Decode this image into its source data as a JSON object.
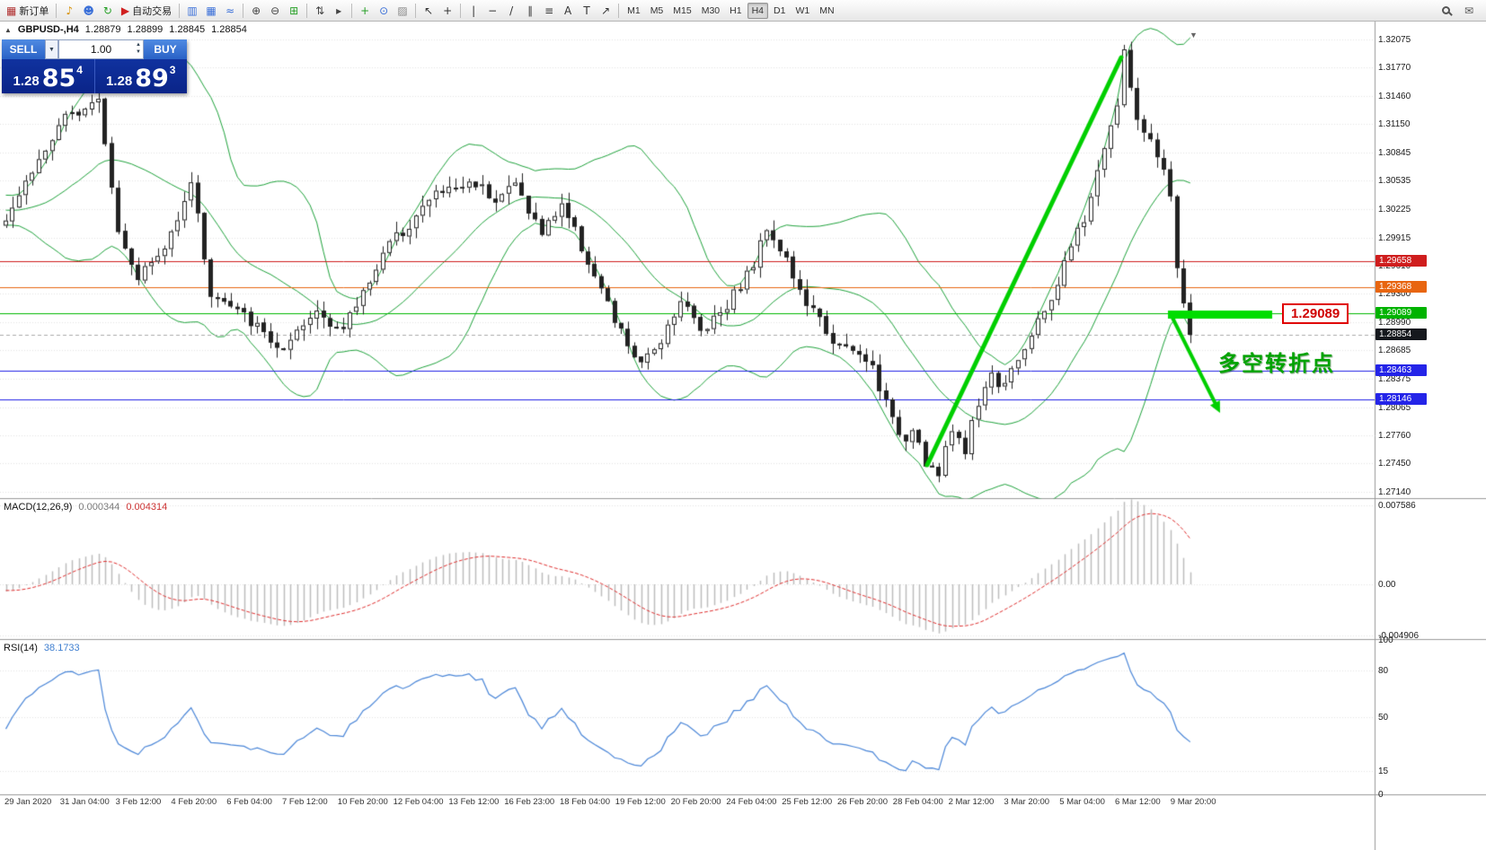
{
  "toolbar": {
    "items": [
      {
        "type": "button",
        "name": "new-order-button",
        "icon": "new-order-icon",
        "glyph": "▦",
        "glyph_color": "#b03030",
        "label": "新订单"
      },
      {
        "type": "sep"
      },
      {
        "type": "icon",
        "name": "megaphone-icon",
        "glyph": "♪",
        "glyph_color": "#d89000"
      },
      {
        "type": "icon",
        "name": "contacts-icon",
        "glyph": "☻",
        "glyph_color": "#3a6fd8"
      },
      {
        "type": "icon",
        "name": "community-icon",
        "glyph": "↻",
        "glyph_color": "#28a028"
      },
      {
        "type": "button",
        "name": "auto-trading-button",
        "icon": "auto-trading-icon",
        "glyph": "▶",
        "glyph_color": "#d02020",
        "label": "自动交易"
      },
      {
        "type": "sep"
      },
      {
        "type": "icon",
        "name": "bar-chart-icon",
        "glyph": "▥",
        "glyph_color": "#3a6fd8"
      },
      {
        "type": "icon",
        "name": "candle-chart-icon",
        "glyph": "▦",
        "glyph_color": "#3a6fd8"
      },
      {
        "type": "icon",
        "name": "line-chart-icon",
        "glyph": "≈",
        "glyph_color": "#3a6fd8"
      },
      {
        "type": "sep"
      },
      {
        "type": "icon",
        "name": "zoom-in-icon",
        "glyph": "⊕",
        "glyph_color": "#444"
      },
      {
        "type": "icon",
        "name": "zoom-out-icon",
        "glyph": "⊖",
        "glyph_color": "#444"
      },
      {
        "type": "icon",
        "name": "tile-windows-icon",
        "glyph": "⊞",
        "glyph_color": "#28a028"
      },
      {
        "type": "sep"
      },
      {
        "type": "icon",
        "name": "arrange-windows-icon",
        "glyph": "⇅",
        "glyph_color": "#444"
      },
      {
        "type": "icon",
        "name": "auto-scroll-icon",
        "glyph": "▸",
        "glyph_color": "#444"
      },
      {
        "type": "sep"
      },
      {
        "type": "icon",
        "name": "add-indicator-icon",
        "glyph": "+",
        "glyph_color": "#28a028"
      },
      {
        "type": "icon",
        "name": "periods-icon",
        "glyph": "⊙",
        "glyph_color": "#3a6fd8"
      },
      {
        "type": "icon",
        "name": "templates-icon",
        "glyph": "▨",
        "glyph_color": "#888"
      },
      {
        "type": "sep"
      },
      {
        "type": "icon",
        "name": "cursor-icon",
        "glyph": "↖",
        "glyph_color": "#333"
      },
      {
        "type": "icon",
        "name": "crosshair-icon",
        "glyph": "+",
        "glyph_color": "#333"
      },
      {
        "type": "sep"
      },
      {
        "type": "icon",
        "name": "vertical-line-icon",
        "glyph": "|",
        "glyph_color": "#333"
      },
      {
        "type": "icon",
        "name": "horizontal-line-icon",
        "glyph": "−",
        "glyph_color": "#333"
      },
      {
        "type": "icon",
        "name": "trendline-icon",
        "glyph": "/",
        "glyph_color": "#333"
      },
      {
        "type": "icon",
        "name": "channel-icon",
        "glyph": "∥",
        "glyph_color": "#333"
      },
      {
        "type": "icon",
        "name": "fibonacci-icon",
        "glyph": "≡",
        "glyph_color": "#333"
      },
      {
        "type": "icon",
        "name": "text-icon",
        "glyph": "A",
        "glyph_color": "#333"
      },
      {
        "type": "icon",
        "name": "label-icon",
        "glyph": "T",
        "glyph_color": "#333"
      },
      {
        "type": "icon",
        "name": "shapes-icon",
        "glyph": "↗",
        "glyph_color": "#333"
      },
      {
        "type": "sep"
      }
    ],
    "timeframes": [
      "M1",
      "M5",
      "M15",
      "M30",
      "H1",
      "H4",
      "D1",
      "W1",
      "MN"
    ],
    "active_timeframe": "H4",
    "items_right": [
      {
        "type": "search",
        "name": "search-icon"
      },
      {
        "type": "icon",
        "name": "message-icon",
        "glyph": "✉",
        "glyph_color": "#555"
      }
    ]
  },
  "quote_bar": {
    "symbol": "GBPUSD-,H4",
    "open": "1.28879",
    "high": "1.28899",
    "low": "1.28845",
    "close": "1.28854"
  },
  "trade_widget": {
    "sell_label": "SELL",
    "buy_label": "BUY",
    "volume": "1.00",
    "sell_big": "1.28",
    "sell_pips": "85",
    "sell_sup": "4",
    "buy_big": "1.28",
    "buy_pips": "89",
    "buy_sup": "3"
  },
  "indicator_labels": {
    "macd_name": "MACD(12,26,9)",
    "macd_main": "0.000344",
    "macd_signal": "0.004314",
    "rsi_name": "RSI(14)",
    "rsi_value": "38.1733"
  },
  "annotations": {
    "level_callout": "1.29089",
    "note_text": "多空转折点"
  },
  "chart_data": {
    "type": "candlestick",
    "symbol": "GBPUSD",
    "timeframe": "H4",
    "price_axis_labels": [
      "1.32075",
      "1.31770",
      "1.31460",
      "1.31150",
      "1.30845",
      "1.30535",
      "1.30225",
      "1.29915",
      "1.29610",
      "1.29300",
      "1.28990",
      "1.28685",
      "1.28375",
      "1.28065",
      "1.27760",
      "1.27450",
      "1.27140"
    ],
    "macd_axis_labels": [
      "0.007586",
      "0.00",
      "-0.004906"
    ],
    "rsi_axis_labels": [
      "100",
      "80",
      "50",
      "15",
      "0"
    ],
    "time_axis_labels": [
      "29 Jan 2020",
      "31 Jan 04:00",
      "3 Feb 12:00",
      "4 Feb 20:00",
      "6 Feb 04:00",
      "7 Feb 12:00",
      "10 Feb 20:00",
      "12 Feb 04:00",
      "13 Feb 12:00",
      "16 Feb 23:00",
      "18 Feb 04:00",
      "19 Feb 12:00",
      "20 Feb 20:00",
      "24 Feb 04:00",
      "25 Feb 12:00",
      "26 Feb 20:00",
      "28 Feb 04:00",
      "2 Mar 12:00",
      "3 Mar 20:00",
      "5 Mar 04:00",
      "6 Mar 12:00",
      "9 Mar 20:00"
    ],
    "levels": [
      {
        "price": 1.29658,
        "label": "1.29658",
        "color": "#cf1d1d",
        "badge": "#cf1d1d",
        "style": "solid"
      },
      {
        "price": 1.29368,
        "label": "1.29368",
        "color": "#e8650f",
        "badge": "#e8650f",
        "style": "solid"
      },
      {
        "price": 1.29089,
        "label": "1.29089",
        "color": "#00b800",
        "badge": "#00b300",
        "style": "solid"
      },
      {
        "price": 1.28854,
        "label": "1.28854",
        "color": "#aaaaaa",
        "badge": "#15181d",
        "style": "dashed",
        "role": "bid"
      },
      {
        "price": 1.28463,
        "label": "1.28463",
        "color": "#2222e6",
        "badge": "#2424e8",
        "style": "solid"
      },
      {
        "price": 1.28146,
        "label": "1.28146",
        "color": "#2222e6",
        "badge": "#2424e8",
        "style": "solid"
      }
    ],
    "bollinger": {
      "period": 20,
      "deviation": 2,
      "color": "#1fa33c"
    },
    "macd": {
      "fast": 12,
      "slow": 26,
      "signal": 9,
      "hist_color": "#bdbdbd",
      "signal_color": "#e03030",
      "current_main": 0.000344,
      "current_signal": 0.004314
    },
    "rsi": {
      "period": 14,
      "color": "#4a86d8",
      "current": 38.1733
    },
    "price_path": [
      [
        0,
        1.3015
      ],
      [
        4,
        1.3065
      ],
      [
        9,
        1.312
      ],
      [
        14,
        1.3148
      ],
      [
        17,
        1.3
      ],
      [
        20,
        1.295
      ],
      [
        24,
        1.2978
      ],
      [
        28,
        1.3055
      ],
      [
        31,
        1.293
      ],
      [
        37,
        1.29
      ],
      [
        42,
        1.2866
      ],
      [
        47,
        1.2912
      ],
      [
        51,
        1.289
      ],
      [
        57,
        1.2975
      ],
      [
        65,
        1.304
      ],
      [
        71,
        1.3052
      ],
      [
        74,
        1.3035
      ],
      [
        77,
        1.305
      ],
      [
        81,
        1.2995
      ],
      [
        84,
        1.303
      ],
      [
        89,
        1.295
      ],
      [
        92,
        1.29
      ],
      [
        96,
        1.285
      ],
      [
        99,
        1.2882
      ],
      [
        102,
        1.2925
      ],
      [
        105,
        1.289
      ],
      [
        109,
        1.292
      ],
      [
        113,
        1.2962
      ],
      [
        115,
        1.3005
      ],
      [
        118,
        1.2968
      ],
      [
        120,
        1.293
      ],
      [
        124,
        1.289
      ],
      [
        126,
        1.2872
      ],
      [
        129,
        1.2862
      ],
      [
        131,
        1.285
      ],
      [
        134,
        1.279
      ],
      [
        136,
        1.2772
      ],
      [
        137,
        1.2788
      ],
      [
        139,
        1.2748
      ],
      [
        141,
        1.2732
      ],
      [
        143,
        1.2782
      ],
      [
        145,
        1.2762
      ],
      [
        147,
        1.2812
      ],
      [
        149,
        1.2846
      ],
      [
        150,
        1.2826
      ],
      [
        152,
        1.2852
      ],
      [
        155,
        1.2882
      ],
      [
        157,
        1.2912
      ],
      [
        159,
        1.2942
      ],
      [
        161,
        1.2982
      ],
      [
        163,
        1.3012
      ],
      [
        165,
        1.3062
      ],
      [
        166,
        1.3092
      ],
      [
        168,
        1.3135
      ],
      [
        169,
        1.3192
      ],
      [
        171,
        1.3122
      ],
      [
        172,
        1.3102
      ],
      [
        173,
        1.3092
      ],
      [
        175,
        1.3062
      ],
      [
        176,
        1.3032
      ],
      [
        177,
        1.2962
      ],
      [
        178,
        1.2922
      ],
      [
        179,
        1.28854
      ]
    ]
  }
}
